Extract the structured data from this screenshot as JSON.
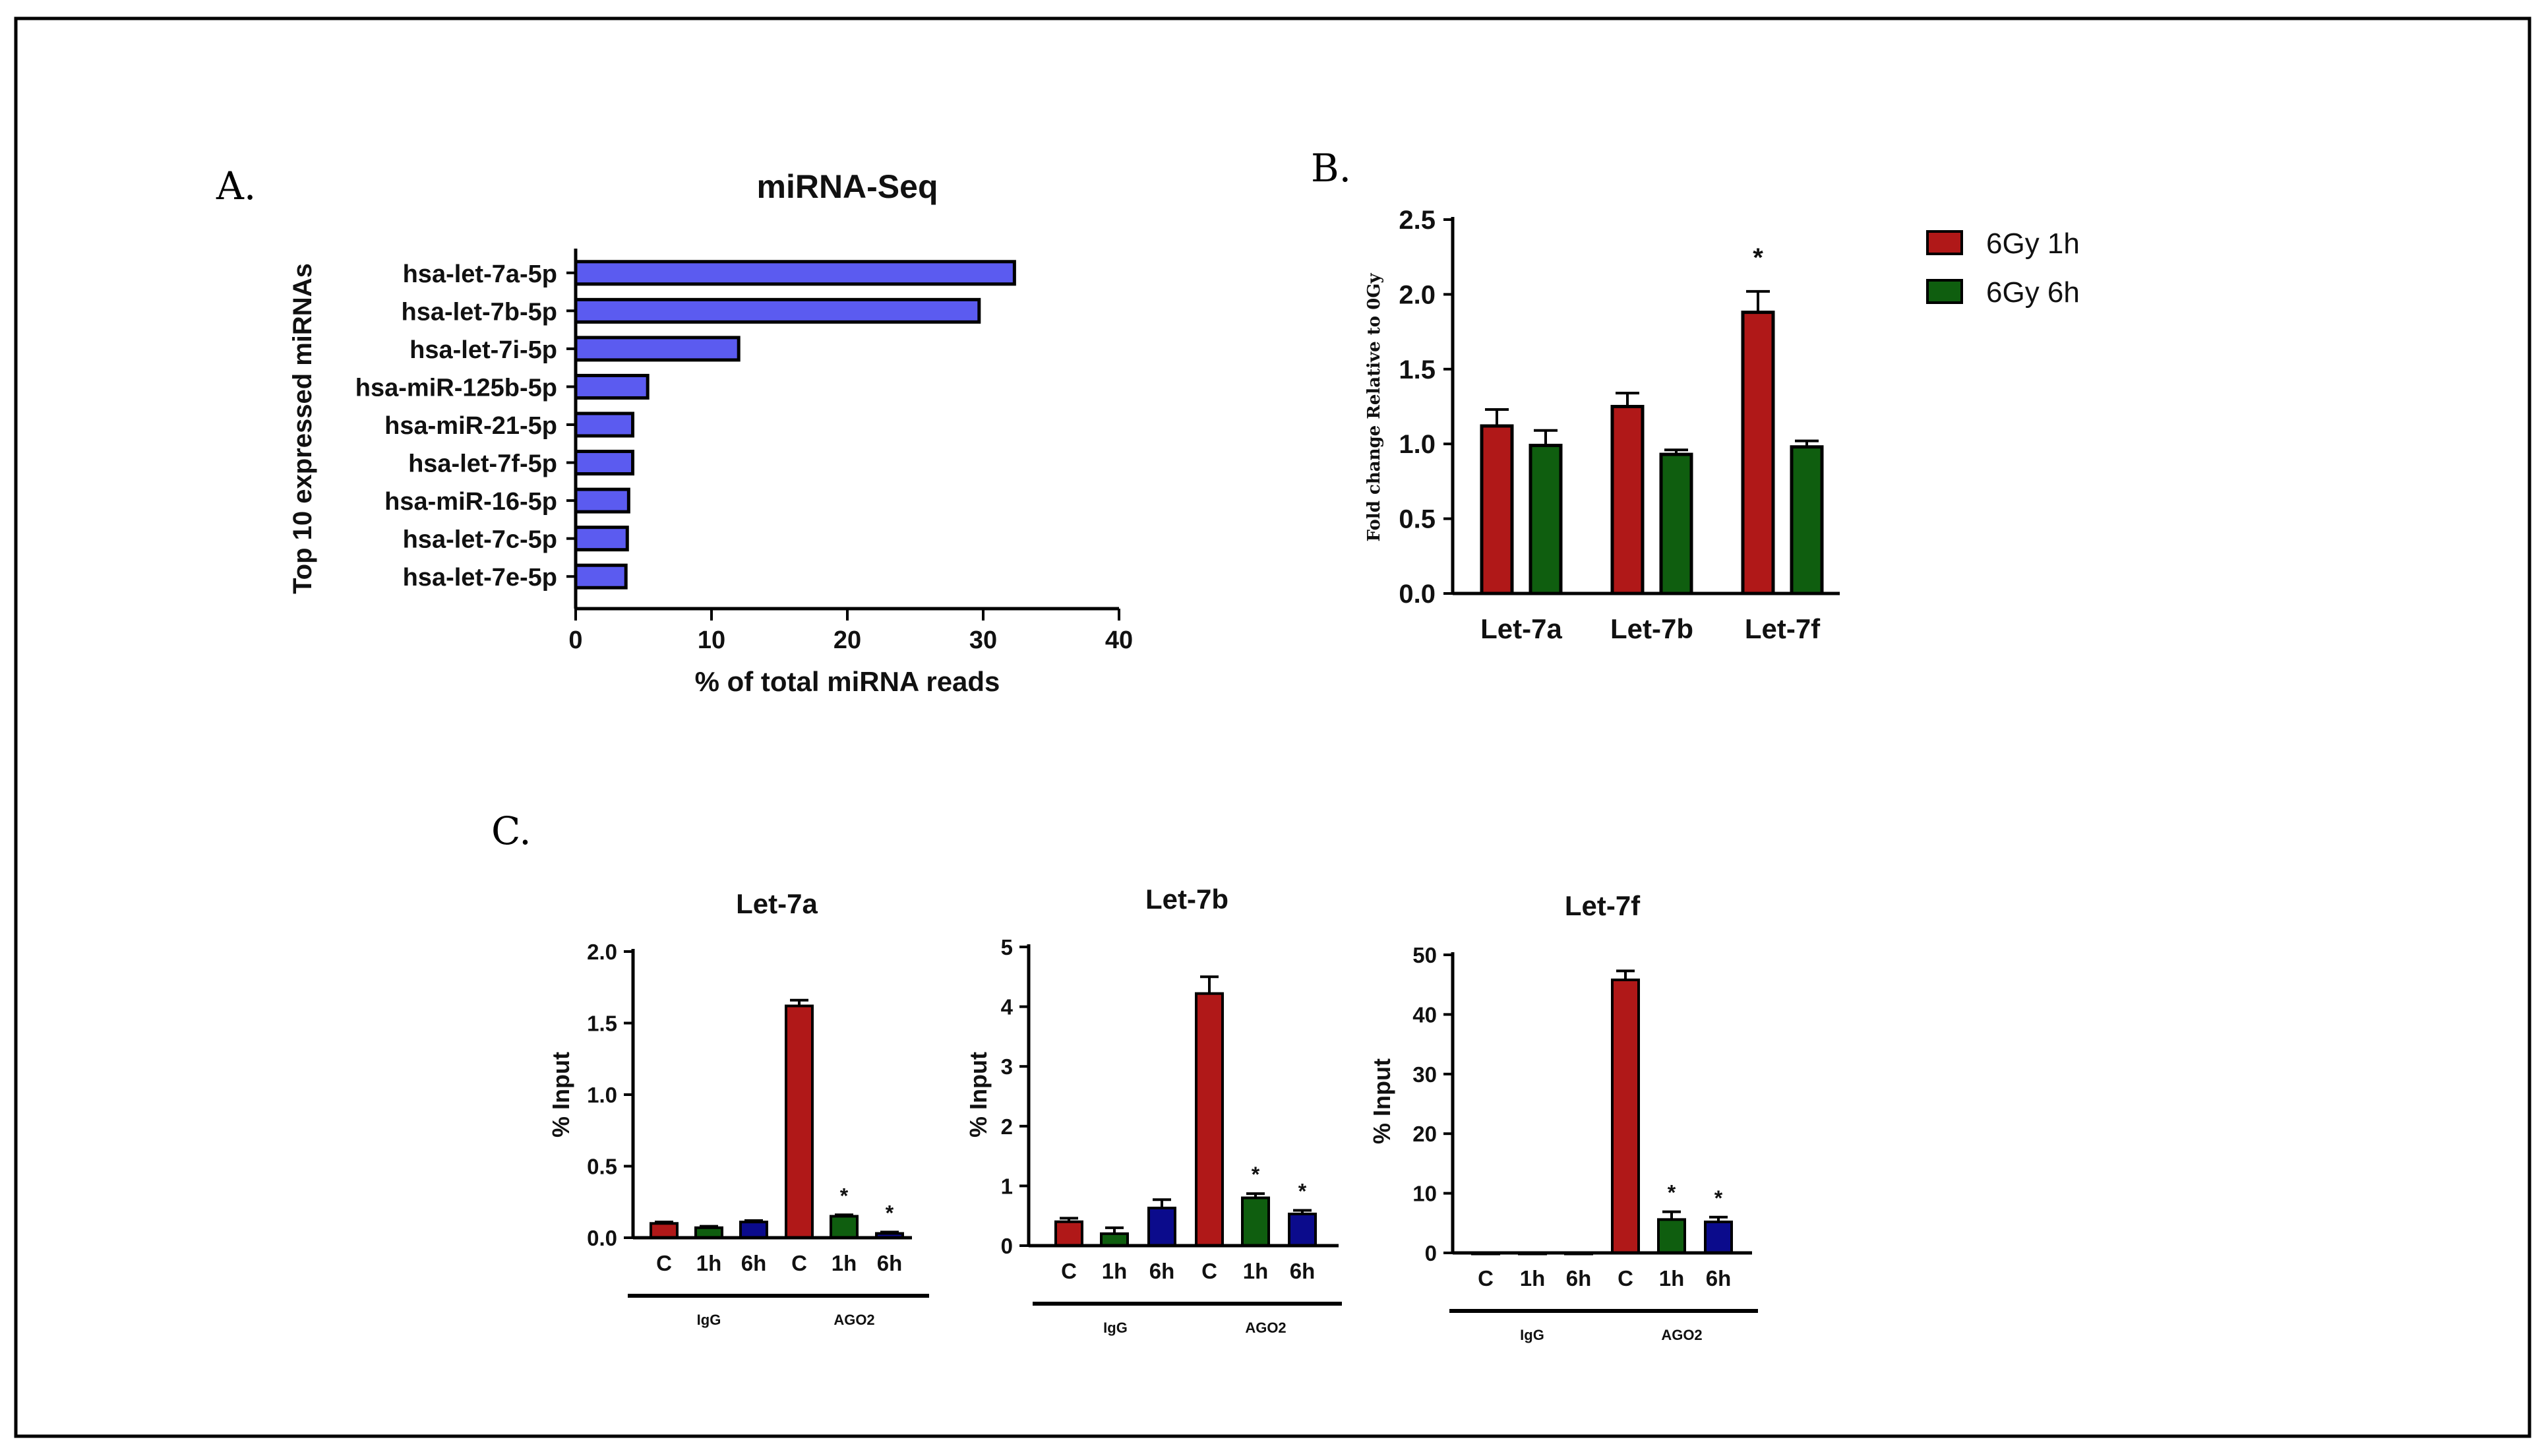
{
  "panel_labels": {
    "a": "A.",
    "b": "B.",
    "c": "C."
  },
  "chart_data": [
    {
      "id": "A",
      "type": "bar",
      "orientation": "horizontal",
      "title": "miRNA-Seq",
      "xlabel": "% of total miRNA reads",
      "ylabel": "Top 10 expressed miRNAs",
      "xlim": [
        0,
        40
      ],
      "xticks": [
        "0",
        "10",
        "20",
        "30",
        "40"
      ],
      "categories": [
        "hsa-let-7a-5p",
        "hsa-let-7b-5p",
        "hsa-let-7i-5p",
        "hsa-miR-125b-5p",
        "hsa-miR-21-5p",
        "hsa-let-7f-5p",
        "hsa-miR-16-5p",
        "hsa-let-7c-5p",
        "hsa-let-7e-5p"
      ],
      "values": [
        32.3,
        29.7,
        12.0,
        5.3,
        4.2,
        4.2,
        3.9,
        3.8,
        3.7
      ],
      "bar_color": "#5b5bf0"
    },
    {
      "id": "B",
      "type": "bar",
      "title": "",
      "xlabel": "",
      "ylabel": "Fold change Relative to 0Gy",
      "ylim": [
        0,
        2.5
      ],
      "yticks": [
        "0.0",
        "0.5",
        "1.0",
        "1.5",
        "2.0",
        "2.5"
      ],
      "categories": [
        "Let-7a",
        "Let-7b",
        "Let-7f"
      ],
      "series": [
        {
          "name": "6Gy 1h",
          "color": "#b01818",
          "values": [
            1.12,
            1.25,
            1.88
          ],
          "errors": [
            0.11,
            0.09,
            0.14
          ],
          "annotations": [
            "",
            "",
            "*"
          ]
        },
        {
          "name": "6Gy 6h",
          "color": "#0f5e0f",
          "values": [
            0.99,
            0.93,
            0.98
          ],
          "errors": [
            0.1,
            0.03,
            0.04
          ],
          "annotations": [
            "",
            "",
            ""
          ]
        }
      ],
      "legend_position": "right"
    },
    {
      "id": "C1",
      "type": "bar",
      "title": "Let-7a",
      "ylabel": "% Input",
      "ylim": [
        0,
        2.0
      ],
      "yticks": [
        "0.0",
        "0.5",
        "1.0",
        "1.5",
        "2.0"
      ],
      "categories": [
        "C",
        "1h",
        "6h",
        "C",
        "1h",
        "6h"
      ],
      "groups": [
        "IgG",
        "AGO2"
      ],
      "values": [
        0.1,
        0.07,
        0.11,
        1.62,
        0.15,
        0.03
      ],
      "errors": [
        0.01,
        0.01,
        0.01,
        0.04,
        0.01,
        0.01
      ],
      "colors": [
        "#b01818",
        "#0f5e0f",
        "#0b0b8c",
        "#b01818",
        "#0f5e0f",
        "#0b0b8c"
      ],
      "annotations": [
        "",
        "",
        "",
        "",
        "*",
        "*"
      ]
    },
    {
      "id": "C2",
      "type": "bar",
      "title": "Let-7b",
      "ylabel": "% Input",
      "ylim": [
        0,
        5
      ],
      "yticks": [
        "0",
        "1",
        "2",
        "3",
        "4",
        "5"
      ],
      "categories": [
        "C",
        "1h",
        "6h",
        "C",
        "1h",
        "6h"
      ],
      "groups": [
        "IgG",
        "AGO2"
      ],
      "values": [
        0.4,
        0.2,
        0.63,
        4.22,
        0.8,
        0.53
      ],
      "errors": [
        0.06,
        0.1,
        0.14,
        0.28,
        0.07,
        0.06
      ],
      "colors": [
        "#b01818",
        "#0f5e0f",
        "#0b0b8c",
        "#b01818",
        "#0f5e0f",
        "#0b0b8c"
      ],
      "annotations": [
        "",
        "",
        "",
        "",
        "*",
        "*"
      ]
    },
    {
      "id": "C3",
      "type": "bar",
      "title": "Let-7f",
      "ylabel": "% Input",
      "ylim": [
        0,
        50
      ],
      "yticks": [
        "0",
        "10",
        "20",
        "30",
        "40",
        "50"
      ],
      "categories": [
        "C",
        "1h",
        "6h",
        "C",
        "1h",
        "6h"
      ],
      "groups": [
        "IgG",
        "AGO2"
      ],
      "values": [
        0.05,
        0.05,
        0.05,
        45.8,
        5.6,
        5.2
      ],
      "errors": [
        0,
        0,
        0,
        1.5,
        1.3,
        0.8
      ],
      "colors": [
        "#b01818",
        "#0f5e0f",
        "#0b0b8c",
        "#b01818",
        "#0f5e0f",
        "#0b0b8c"
      ],
      "annotations": [
        "",
        "",
        "",
        "",
        "*",
        "*"
      ]
    }
  ]
}
